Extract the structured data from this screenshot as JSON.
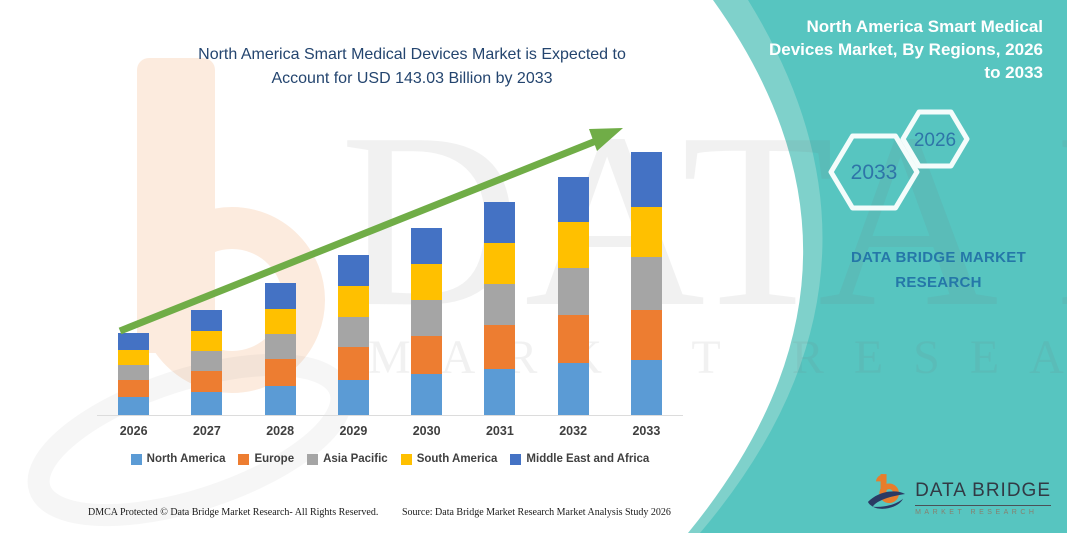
{
  "header": {
    "left_title": "North America Smart Medical Devices Market is Expected to Account for USD 143.03 Billion by 2033",
    "right_title": "North America Smart Medical Devices Market, By Regions, 2026 to 2033"
  },
  "banner": {
    "teal_color": "#57C5C0",
    "hexagon_labels": [
      "2033",
      "2026"
    ],
    "brand_caption": "DATA BRIDGE MARKET RESEARCH"
  },
  "watermark": {
    "line1": "DATA BRIDGE",
    "line2": "MARKET RESEARCH"
  },
  "chart_data": {
    "type": "bar",
    "stacked": true,
    "title": "North America Smart Medical Devices Market is Expected to Account for USD 143.03 Billion by 2033",
    "unit": "USD Billion",
    "categories": [
      "2026",
      "2027",
      "2028",
      "2029",
      "2030",
      "2031",
      "2032",
      "2033"
    ],
    "series": [
      {
        "name": "North America",
        "color": "#5B9BD5",
        "values": [
          9.8,
          12.5,
          15.7,
          19.0,
          22.2,
          25.3,
          28.2,
          29.9
        ]
      },
      {
        "name": "Europe",
        "color": "#ED7D31",
        "values": [
          9.2,
          11.6,
          14.5,
          17.8,
          20.8,
          23.6,
          26.4,
          27.2
        ]
      },
      {
        "name": "Asia Pacific",
        "color": "#A5A5A5",
        "values": [
          8.2,
          10.8,
          13.8,
          16.8,
          19.8,
          22.6,
          25.4,
          28.8
        ]
      },
      {
        "name": "South America",
        "color": "#FFC000",
        "values": [
          8.2,
          10.8,
          13.8,
          16.7,
          19.5,
          22.2,
          24.8,
          27.2
        ]
      },
      {
        "name": "Middle East and Africa",
        "color": "#4472C4",
        "values": [
          9.2,
          11.4,
          14.0,
          16.7,
          19.4,
          22.1,
          24.6,
          29.93
        ]
      }
    ],
    "totals": [
      44.6,
      57.1,
      71.8,
      87.0,
      101.7,
      115.8,
      129.4,
      143.03
    ],
    "value_axis_visible": false,
    "gridlines": false,
    "legend_position": "bottom",
    "trend_arrow": {
      "present": true,
      "color": "#70AD47",
      "direction": "up-right"
    }
  },
  "footer": {
    "left": "DMCA Protected © Data Bridge Market Research-  All Rights Reserved.",
    "right": "Source: Data Bridge Market Research  Market Analysis Study 2026"
  },
  "logo": {
    "title": "DATA BRIDGE",
    "subtitle": "MARKET RESEARCH"
  }
}
